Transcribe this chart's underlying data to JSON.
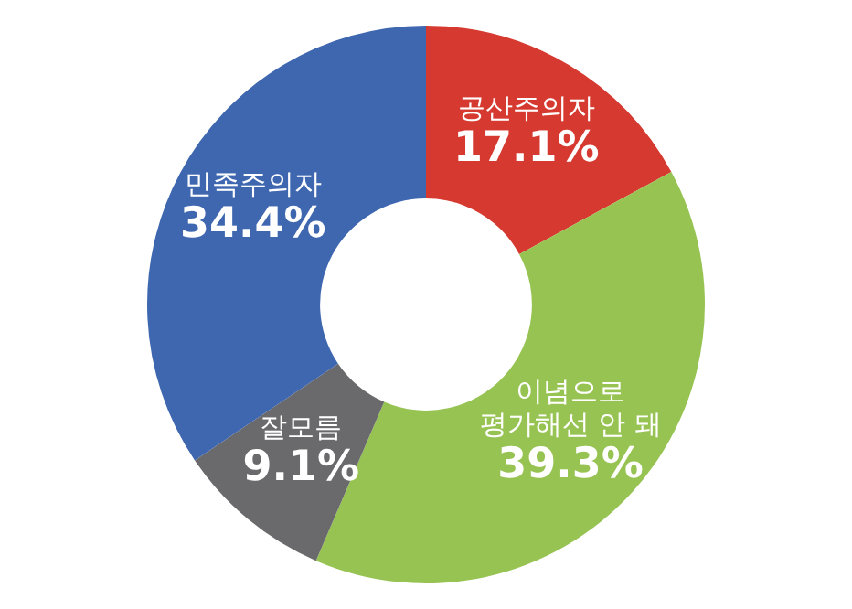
{
  "chart_data": {
    "type": "donut",
    "categories": [
      "공산주의자",
      "이념으로\n평가해선 안 돼",
      "잘모름",
      "민족주의자"
    ],
    "values": [
      17.1,
      39.3,
      9.1,
      34.4
    ],
    "colors": [
      "#d5392f",
      "#97c353",
      "#6a6a6c",
      "#3e67b0"
    ],
    "value_labels": [
      "17.1%",
      "39.3%",
      "9.1%",
      "34.4%"
    ],
    "legend": false
  }
}
